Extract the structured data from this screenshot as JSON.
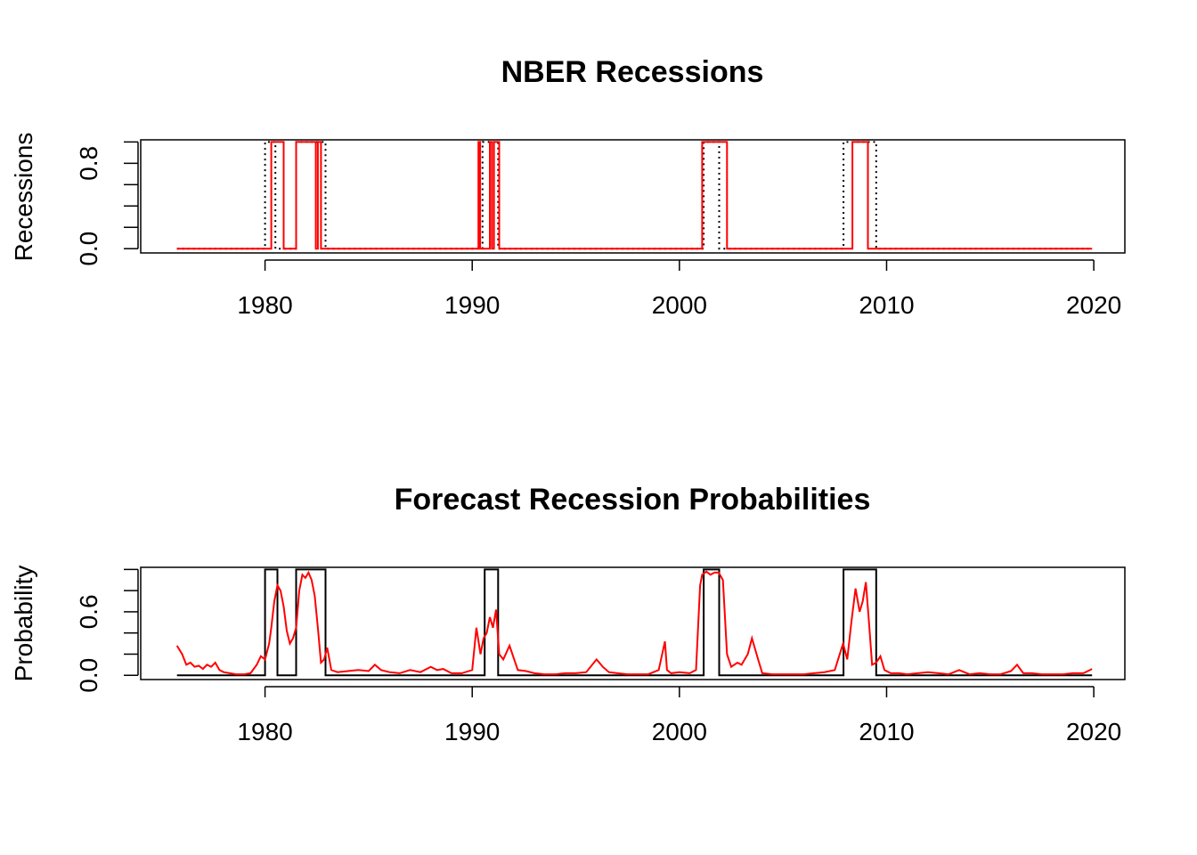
{
  "chart_data": [
    {
      "type": "line",
      "title": "NBER Recessions",
      "xlabel": "",
      "ylabel": "Recessions",
      "xlim": [
        1974,
        2021.5
      ],
      "ylim": [
        -0.04,
        1.02
      ],
      "x_ticks": [
        "1980",
        "1990",
        "2000",
        "2010",
        "2020"
      ],
      "y_tick_values": [
        0,
        0.2,
        0.4,
        0.6,
        0.8,
        1.0
      ],
      "y_tick_labels": [
        "0.0",
        "0.8"
      ],
      "grid": false,
      "colors": {
        "nber": "#000000",
        "predicted": "#ff0000"
      },
      "series": [
        {
          "style": "dotted",
          "color": "#000000",
          "x": [
            1975.75,
            1980.0,
            1980.0,
            1980.5,
            1980.5,
            1981.5,
            1981.5,
            1982.92,
            1982.92,
            1990.5,
            1990.5,
            1991.25,
            1991.25,
            2001.17,
            2001.17,
            2001.92,
            2001.92,
            2007.92,
            2007.92,
            2009.5,
            2009.5,
            2019.92
          ],
          "values": [
            0,
            0,
            1,
            1,
            0,
            0,
            1,
            1,
            0,
            0,
            1,
            1,
            0,
            0,
            1,
            1,
            0,
            0,
            1,
            1,
            0,
            0
          ]
        },
        {
          "style": "solid",
          "color": "#ff0000",
          "x": [
            1975.75,
            1980.3,
            1980.3,
            1980.9,
            1980.9,
            1981.5,
            1981.5,
            1982.45,
            1982.45,
            1982.55,
            1982.55,
            1982.7,
            1982.7,
            1982.8,
            1982.8,
            1990.3,
            1990.3,
            1990.38,
            1990.38,
            1990.85,
            1990.85,
            1990.95,
            1990.95,
            1991.05,
            1991.05,
            1991.3,
            1991.3,
            2001.1,
            2001.1,
            2002.3,
            2002.3,
            2008.35,
            2008.35,
            2009.1,
            2009.1,
            2019.92
          ],
          "values": [
            0,
            0,
            1,
            1,
            0,
            0,
            1,
            1,
            0,
            0,
            1,
            1,
            0,
            0,
            0,
            0,
            1,
            1,
            0,
            0,
            1,
            1,
            0,
            0,
            1,
            1,
            0,
            0,
            1,
            1,
            0,
            0,
            1,
            1,
            0,
            0
          ]
        }
      ]
    },
    {
      "type": "line",
      "title": "Forecast Recession Probabilities",
      "xlabel": "",
      "ylabel": "Probability",
      "xlim": [
        1974,
        2021.5
      ],
      "ylim": [
        -0.04,
        1.02
      ],
      "x_ticks": [
        "1980",
        "1990",
        "2000",
        "2010",
        "2020"
      ],
      "y_tick_values": [
        0,
        0.2,
        0.4,
        0.6,
        0.8,
        1.0
      ],
      "y_tick_labels": [
        "0.0",
        "0.6"
      ],
      "grid": false,
      "colors": {
        "nber": "#000000",
        "forecast": "#ff0000"
      },
      "series": [
        {
          "style": "solid",
          "color": "#000000",
          "x": [
            1975.75,
            1980.0,
            1980.0,
            1980.6,
            1980.6,
            1981.5,
            1981.5,
            1982.92,
            1982.92,
            1990.6,
            1990.6,
            1991.25,
            1991.25,
            2001.17,
            2001.17,
            2001.92,
            2001.92,
            2007.92,
            2007.92,
            2009.5,
            2009.5,
            2019.92
          ],
          "values": [
            0,
            0,
            1,
            1,
            0,
            0,
            1,
            1,
            0,
            0,
            1,
            1,
            0,
            0,
            1,
            1,
            0,
            0,
            1,
            1,
            0,
            0
          ]
        },
        {
          "style": "solid",
          "color": "#ff0000",
          "x": [
            1975.75,
            1976.0,
            1976.2,
            1976.4,
            1976.6,
            1976.8,
            1977.0,
            1977.2,
            1977.4,
            1977.6,
            1977.8,
            1978.0,
            1978.3,
            1978.6,
            1979.0,
            1979.3,
            1979.6,
            1979.8,
            1980.0,
            1980.2,
            1980.3,
            1980.45,
            1980.6,
            1980.75,
            1980.9,
            1981.05,
            1981.2,
            1981.35,
            1981.5,
            1981.65,
            1981.8,
            1981.95,
            1982.1,
            1982.25,
            1982.4,
            1982.55,
            1982.7,
            1982.85,
            1983.0,
            1983.2,
            1983.5,
            1984.0,
            1984.5,
            1985.0,
            1985.3,
            1985.6,
            1986.0,
            1986.5,
            1987.0,
            1987.5,
            1988.0,
            1988.3,
            1988.6,
            1989.0,
            1989.5,
            1990.0,
            1990.2,
            1990.4,
            1990.55,
            1990.7,
            1990.85,
            1991.0,
            1991.15,
            1991.3,
            1991.5,
            1991.8,
            1992.2,
            1992.6,
            1993.0,
            1993.5,
            1994.0,
            1994.5,
            1995.0,
            1995.5,
            1996.0,
            1996.3,
            1996.6,
            1997.0,
            1997.5,
            1998.0,
            1998.5,
            1999.0,
            1999.3,
            1999.4,
            1999.6,
            2000.0,
            2000.5,
            2000.8,
            2001.0,
            2001.1,
            2001.3,
            2001.5,
            2001.7,
            2001.9,
            2002.1,
            2002.3,
            2002.5,
            2002.8,
            2003.0,
            2003.3,
            2003.5,
            2003.8,
            2004.0,
            2004.5,
            2005.0,
            2005.5,
            2006.0,
            2006.5,
            2007.0,
            2007.5,
            2007.9,
            2008.1,
            2008.3,
            2008.5,
            2008.7,
            2008.85,
            2009.0,
            2009.15,
            2009.3,
            2009.5,
            2009.7,
            2009.9,
            2010.2,
            2010.6,
            2011.0,
            2011.5,
            2012.0,
            2012.5,
            2013.0,
            2013.5,
            2014.0,
            2014.5,
            2015.0,
            2015.5,
            2016.0,
            2016.3,
            2016.6,
            2017.0,
            2017.5,
            2018.0,
            2018.5,
            2019.0,
            2019.5,
            2019.92
          ],
          "values": [
            0.28,
            0.2,
            0.1,
            0.12,
            0.08,
            0.09,
            0.06,
            0.1,
            0.08,
            0.12,
            0.05,
            0.03,
            0.02,
            0.01,
            0.01,
            0.02,
            0.1,
            0.18,
            0.15,
            0.3,
            0.45,
            0.7,
            0.85,
            0.8,
            0.65,
            0.42,
            0.3,
            0.35,
            0.45,
            0.8,
            0.95,
            0.92,
            0.97,
            0.9,
            0.75,
            0.45,
            0.12,
            0.15,
            0.26,
            0.05,
            0.03,
            0.04,
            0.05,
            0.04,
            0.1,
            0.05,
            0.03,
            0.02,
            0.05,
            0.03,
            0.08,
            0.05,
            0.06,
            0.02,
            0.02,
            0.05,
            0.45,
            0.2,
            0.35,
            0.4,
            0.55,
            0.45,
            0.62,
            0.2,
            0.15,
            0.28,
            0.05,
            0.04,
            0.02,
            0.01,
            0.01,
            0.02,
            0.02,
            0.03,
            0.15,
            0.08,
            0.03,
            0.02,
            0.01,
            0.01,
            0.01,
            0.05,
            0.32,
            0.05,
            0.02,
            0.03,
            0.02,
            0.05,
            0.85,
            0.95,
            0.98,
            0.95,
            0.97,
            0.97,
            0.9,
            0.2,
            0.08,
            0.12,
            0.1,
            0.2,
            0.35,
            0.15,
            0.02,
            0.01,
            0.01,
            0.01,
            0.01,
            0.02,
            0.03,
            0.05,
            0.3,
            0.15,
            0.5,
            0.82,
            0.6,
            0.7,
            0.88,
            0.5,
            0.1,
            0.12,
            0.18,
            0.05,
            0.02,
            0.02,
            0.01,
            0.02,
            0.03,
            0.02,
            0.01,
            0.05,
            0.01,
            0.02,
            0.01,
            0.01,
            0.04,
            0.1,
            0.02,
            0.02,
            0.01,
            0.01,
            0.01,
            0.02,
            0.02,
            0.06
          ]
        }
      ]
    }
  ]
}
